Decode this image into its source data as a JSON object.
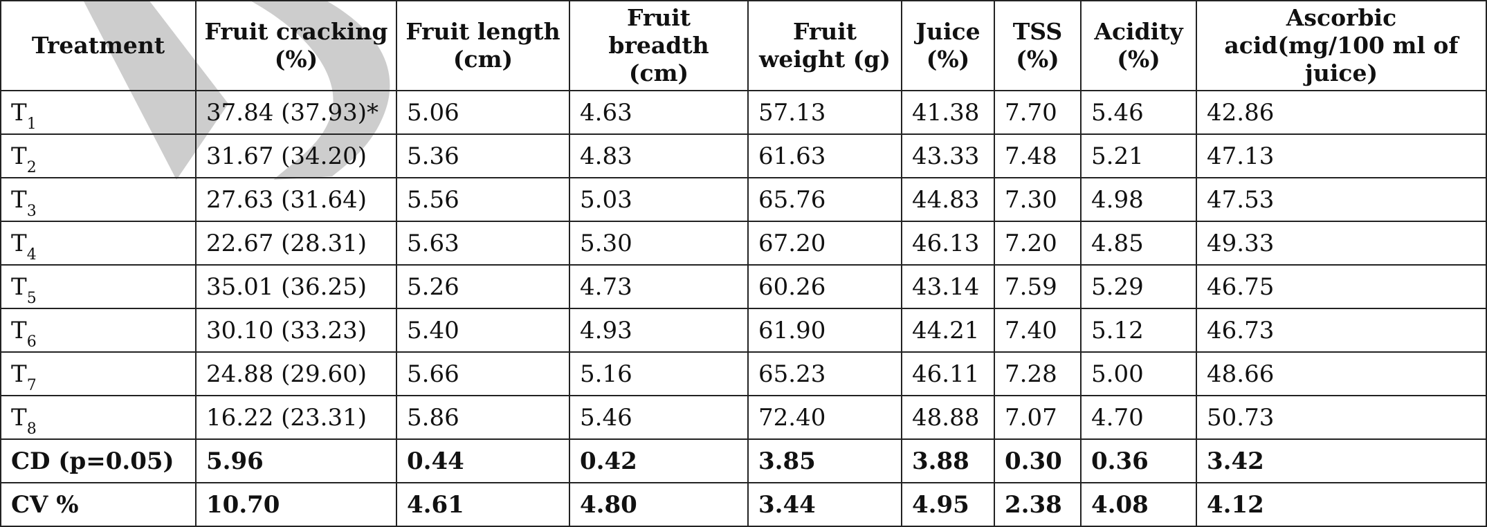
{
  "table": {
    "headers": [
      "Treatment",
      "Fruit cracking (%)",
      "Fruit length (cm)",
      "Fruit breadth (cm)",
      "Fruit weight  (g)",
      "Juice (%)",
      "TSS (%)",
      "Acidity (%)",
      "Ascorbic acid(mg/100 ml of juice)"
    ],
    "rows": [
      {
        "treatment": "T",
        "sub": "1",
        "cells": [
          "37.84 (37.93)*",
          "5.06",
          "4.63",
          "57.13",
          "41.38",
          "7.70",
          "5.46",
          "42.86"
        ]
      },
      {
        "treatment": "T",
        "sub": "2",
        "cells": [
          "31.67 (34.20)",
          "5.36",
          "4.83",
          "61.63",
          "43.33",
          "7.48",
          "5.21",
          "47.13"
        ]
      },
      {
        "treatment": "T",
        "sub": "3",
        "cells": [
          "27.63 (31.64)",
          "5.56",
          "5.03",
          "65.76",
          "44.83",
          "7.30",
          "4.98",
          "47.53"
        ]
      },
      {
        "treatment": "T",
        "sub": "4",
        "cells": [
          "22.67 (28.31)",
          "5.63",
          "5.30",
          "67.20",
          "46.13",
          "7.20",
          "4.85",
          "49.33"
        ]
      },
      {
        "treatment": "T",
        "sub": "5",
        "cells": [
          "35.01 (36.25)",
          "5.26",
          "4.73",
          "60.26",
          "43.14",
          "7.59",
          "5.29",
          "46.75"
        ]
      },
      {
        "treatment": "T",
        "sub": "6",
        "cells": [
          "30.10 (33.23)",
          "5.40",
          "4.93",
          "61.90",
          "44.21",
          "7.40",
          "5.12",
          "46.73"
        ]
      },
      {
        "treatment": "T",
        "sub": "7",
        "cells": [
          "24.88 (29.60)",
          "5.66",
          "5.16",
          "65.23",
          "46.11",
          "7.28",
          "5.00",
          "48.66"
        ]
      },
      {
        "treatment": "T",
        "sub": "8",
        "cells": [
          "16.22 (23.31)",
          "5.86",
          "5.46",
          "72.40",
          "48.88",
          "7.07",
          "4.70",
          "50.73"
        ]
      }
    ],
    "cd_row": {
      "label": "CD (p=0.05)",
      "cells": [
        "5.96",
        "0.44",
        "0.42",
        "3.85",
        "3.88",
        "0.30",
        "0.36",
        "3.42"
      ]
    },
    "cv_row": {
      "label": "CV %",
      "cells": [
        "10.70",
        "4.61",
        "4.80",
        "3.44",
        "4.95",
        "2.38",
        "4.08",
        "4.12"
      ]
    }
  },
  "colors": {
    "border": "#222222",
    "text": "#111111",
    "watermark": "#c8c8c8"
  },
  "watermark_icon": "diagonal-watermark-shape"
}
